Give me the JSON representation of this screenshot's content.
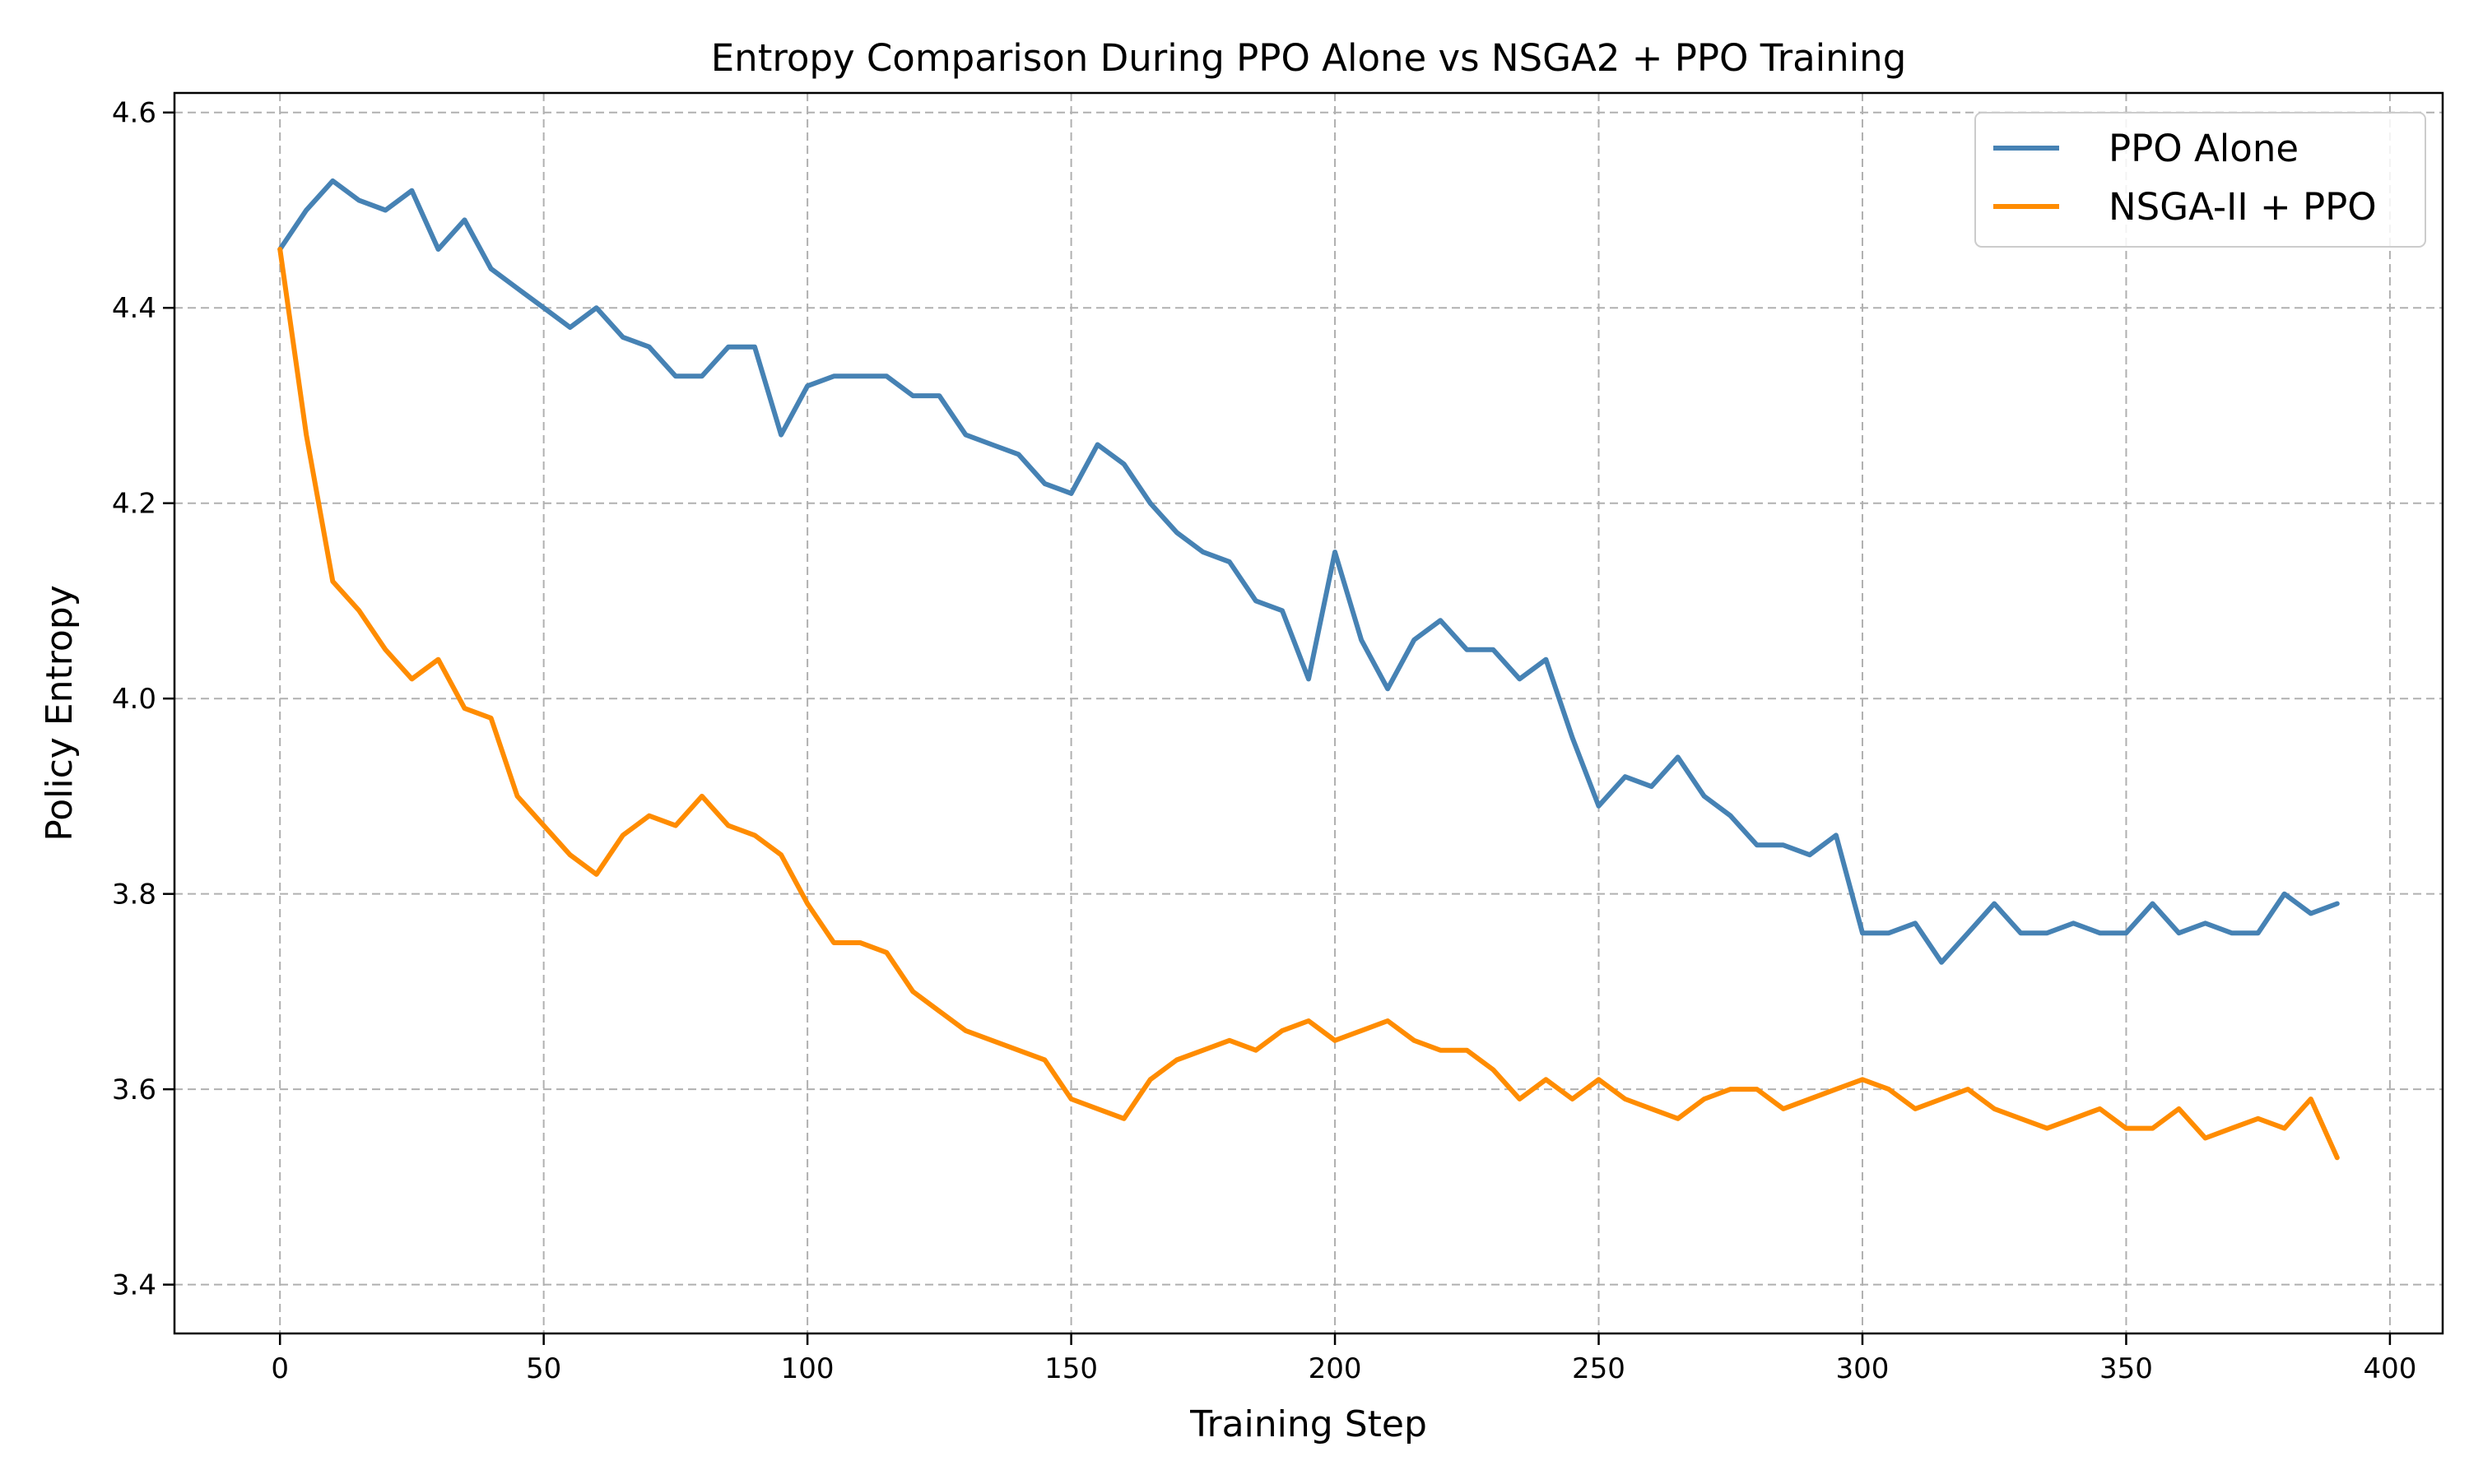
{
  "chart_data": {
    "type": "line",
    "title": "Entropy Comparison During PPO Alone vs NSGA2 + PPO Training",
    "xlabel": "Training Step",
    "ylabel": "Policy Entropy",
    "xlim": [
      -20,
      410
    ],
    "ylim": [
      3.35,
      4.62
    ],
    "xticks": [
      0,
      50,
      100,
      150,
      200,
      250,
      300,
      350,
      400
    ],
    "yticks": [
      3.4,
      3.6,
      3.8,
      4.0,
      4.2,
      4.4,
      4.6
    ],
    "grid": true,
    "legend_position": "top-right",
    "x": [
      0,
      5,
      10,
      15,
      20,
      25,
      30,
      35,
      40,
      45,
      50,
      55,
      60,
      65,
      70,
      75,
      80,
      85,
      90,
      95,
      100,
      105,
      110,
      115,
      120,
      125,
      130,
      135,
      140,
      145,
      150,
      155,
      160,
      165,
      170,
      175,
      180,
      185,
      190,
      195,
      200,
      205,
      210,
      215,
      220,
      225,
      230,
      235,
      240,
      245,
      250,
      255,
      260,
      265,
      270,
      275,
      280,
      285,
      290,
      295,
      300,
      305,
      310,
      315,
      320,
      325,
      330,
      335,
      340,
      345,
      350,
      355,
      360,
      365,
      370,
      375,
      380,
      385,
      390
    ],
    "series": [
      {
        "name": "PPO Alone",
        "color": "#4682b4",
        "values": [
          4.46,
          4.5,
          4.53,
          4.51,
          4.5,
          4.52,
          4.46,
          4.49,
          4.44,
          4.42,
          4.4,
          4.38,
          4.4,
          4.37,
          4.36,
          4.33,
          4.33,
          4.36,
          4.36,
          4.27,
          4.32,
          4.33,
          4.33,
          4.33,
          4.31,
          4.31,
          4.27,
          4.26,
          4.25,
          4.22,
          4.21,
          4.26,
          4.24,
          4.2,
          4.17,
          4.15,
          4.14,
          4.1,
          4.09,
          4.02,
          4.15,
          4.06,
          4.01,
          4.06,
          4.08,
          4.05,
          4.05,
          4.02,
          4.04,
          3.96,
          3.89,
          3.92,
          3.91,
          3.94,
          3.9,
          3.88,
          3.85,
          3.85,
          3.84,
          3.86,
          3.76,
          3.76,
          3.77,
          3.73,
          3.76,
          3.79,
          3.76,
          3.76,
          3.77,
          3.76,
          3.76,
          3.79,
          3.76,
          3.77,
          3.76,
          3.76,
          3.8,
          3.78,
          3.79
        ]
      },
      {
        "name": "NSGA-II + PPO",
        "color": "#ff8c00",
        "values": [
          4.46,
          4.27,
          4.12,
          4.09,
          4.05,
          4.02,
          4.04,
          3.99,
          3.98,
          3.9,
          3.87,
          3.84,
          3.82,
          3.86,
          3.88,
          3.87,
          3.9,
          3.87,
          3.86,
          3.84,
          3.79,
          3.75,
          3.75,
          3.74,
          3.7,
          3.68,
          3.66,
          3.65,
          3.64,
          3.63,
          3.59,
          3.58,
          3.57,
          3.61,
          3.63,
          3.64,
          3.65,
          3.64,
          3.66,
          3.67,
          3.65,
          3.66,
          3.67,
          3.65,
          3.64,
          3.64,
          3.62,
          3.59,
          3.61,
          3.59,
          3.61,
          3.59,
          3.58,
          3.57,
          3.59,
          3.6,
          3.6,
          3.58,
          3.59,
          3.6,
          3.61,
          3.6,
          3.58,
          3.59,
          3.6,
          3.58,
          3.57,
          3.56,
          3.57,
          3.58,
          3.56,
          3.56,
          3.58,
          3.55,
          3.56,
          3.57,
          3.56,
          3.59,
          3.53
        ]
      }
    ]
  }
}
